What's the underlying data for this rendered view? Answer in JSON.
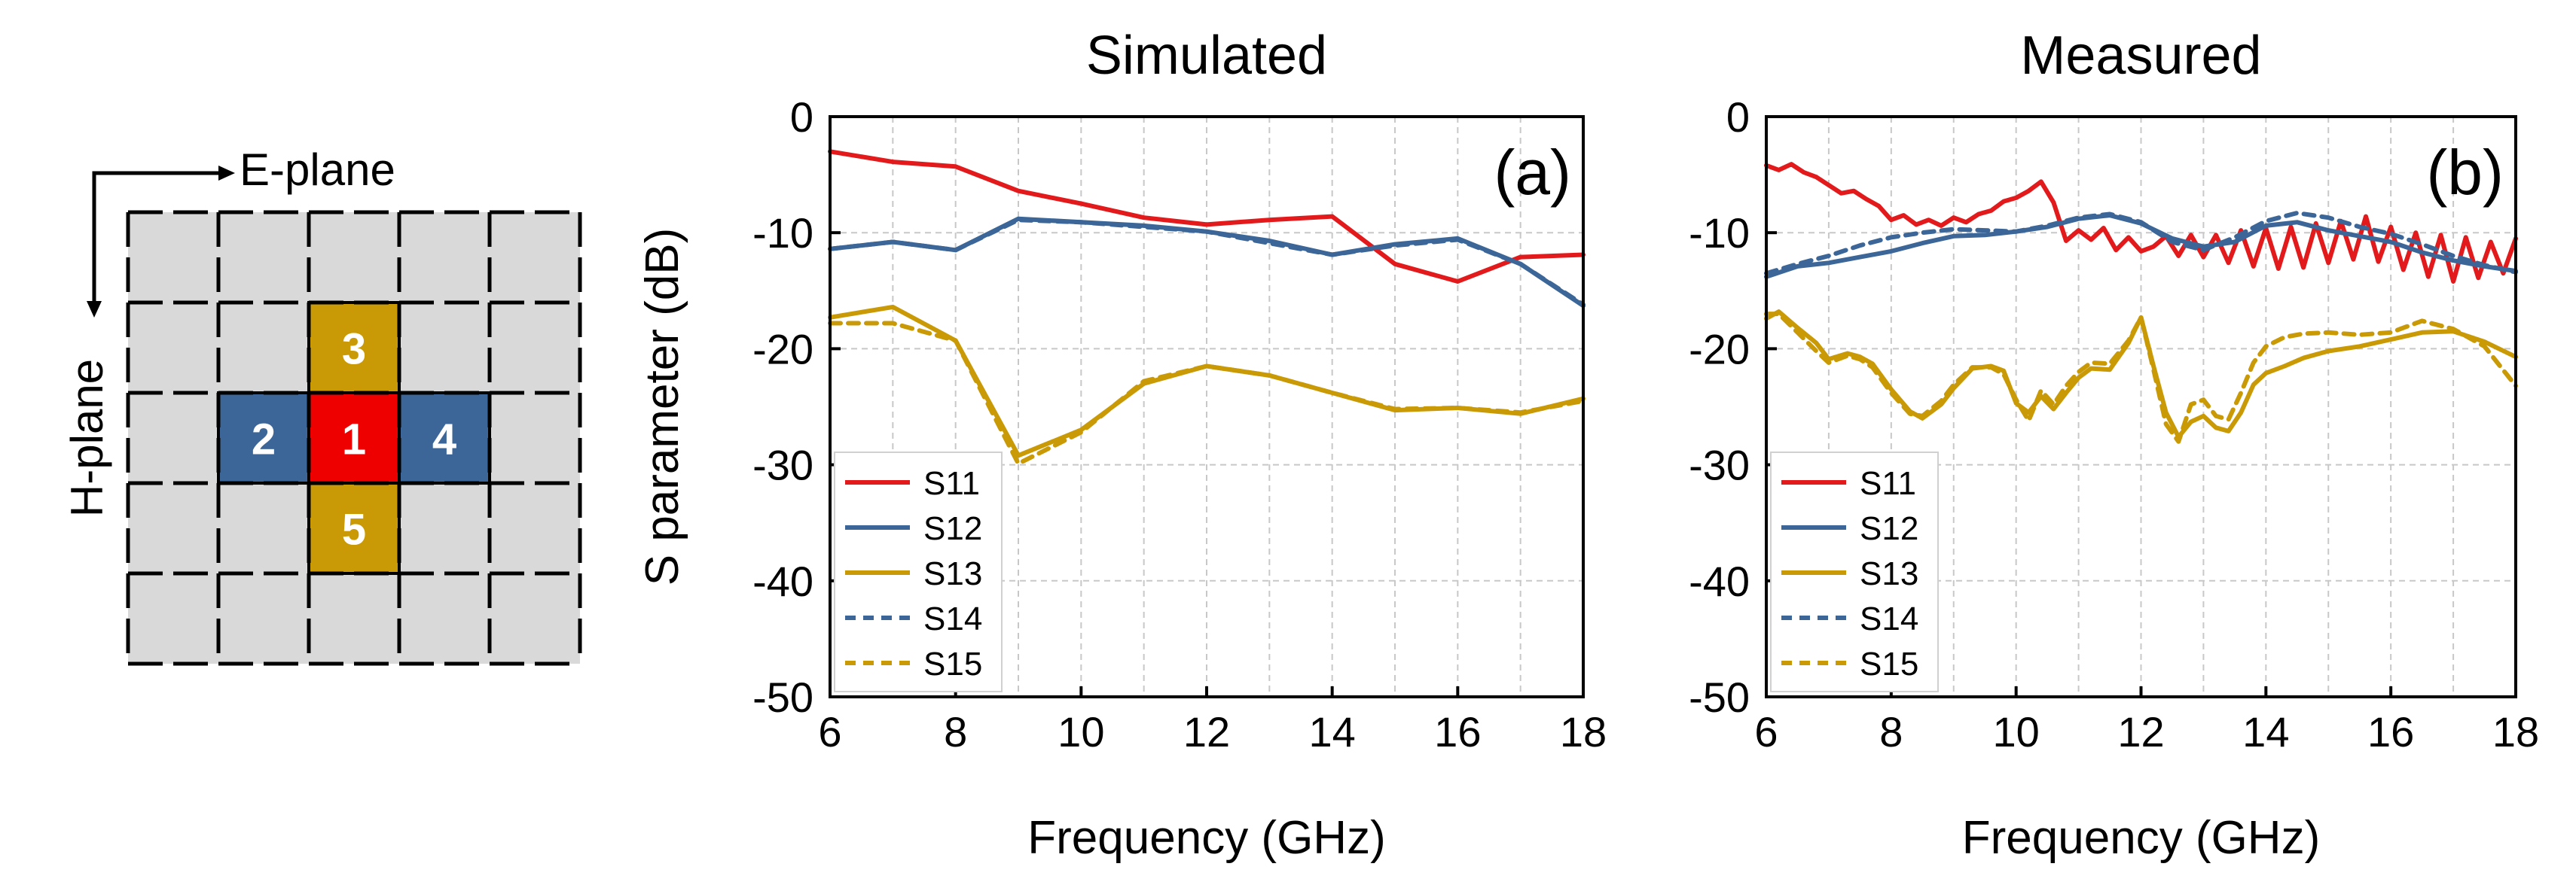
{
  "diagram": {
    "e_plane_label": "E-plane",
    "h_plane_label": "H-plane",
    "cells": [
      {
        "label": "1",
        "color": "#ee0000"
      },
      {
        "label": "2",
        "color": "#3b6697"
      },
      {
        "label": "3",
        "color": "#c99a06"
      },
      {
        "label": "4",
        "color": "#3b6697"
      },
      {
        "label": "5",
        "color": "#c99a06"
      }
    ],
    "grid_fill": "#d9d9d9"
  },
  "chart_data": [
    {
      "type": "line",
      "title": "Simulated",
      "panel_label": "(a)",
      "xlabel": "Frequency (GHz)",
      "ylabel": "S parameter (dB)",
      "xlim": [
        6,
        18
      ],
      "ylim": [
        -50,
        0
      ],
      "xticks": [
        "6",
        "8",
        "10",
        "12",
        "14",
        "16",
        "18"
      ],
      "yticks": [
        "0",
        "-10",
        "-20",
        "-30",
        "-40",
        "-50"
      ],
      "grid": true,
      "legend_position": "bottom-left",
      "series": [
        {
          "name": "S11",
          "color": "#e31a1c",
          "dash": false,
          "x": [
            6,
            7,
            8,
            9,
            10,
            11,
            12,
            13,
            14,
            15,
            16,
            17,
            18
          ],
          "y": [
            -3,
            -3.9,
            -4.3,
            -6.4,
            -7.5,
            -8.7,
            -9.3,
            -8.9,
            -8.6,
            -12.7,
            -14.2,
            -12.1,
            -11.9
          ]
        },
        {
          "name": "S12",
          "color": "#3b6697",
          "dash": false,
          "x": [
            6,
            7,
            8,
            9,
            10,
            11,
            12,
            13,
            14,
            15,
            16,
            17,
            18
          ],
          "y": [
            -11.4,
            -10.8,
            -11.5,
            -8.8,
            -9.1,
            -9.4,
            -9.9,
            -10.7,
            -11.9,
            -11,
            -10.5,
            -12.7,
            -16.3
          ]
        },
        {
          "name": "S13",
          "color": "#c99a06",
          "dash": false,
          "x": [
            6,
            7,
            8,
            9,
            10,
            11,
            12,
            13,
            14,
            15,
            16,
            17,
            18
          ],
          "y": [
            -17.3,
            -16.4,
            -19.3,
            -29.2,
            -27,
            -23,
            -21.5,
            -22.3,
            -23.8,
            -25.3,
            -25.1,
            -25.6,
            -24.3
          ]
        },
        {
          "name": "S14",
          "color": "#3b6697",
          "dash": true,
          "x": [
            6,
            7,
            8,
            9,
            10,
            11,
            12,
            13,
            14,
            15,
            16,
            17,
            18
          ],
          "y": [
            -11.4,
            -10.8,
            -11.5,
            -8.9,
            -9.1,
            -9.5,
            -9.9,
            -10.9,
            -11.9,
            -11.1,
            -10.6,
            -12.7,
            -16.2
          ]
        },
        {
          "name": "S15",
          "color": "#c99a06",
          "dash": true,
          "x": [
            6,
            7,
            8,
            9,
            10,
            11,
            12,
            13,
            14,
            15,
            16,
            17,
            18
          ],
          "y": [
            -17.8,
            -17.8,
            -19.3,
            -29.9,
            -27.2,
            -22.8,
            -21.5,
            -22.3,
            -23.8,
            -25.2,
            -25.1,
            -25.5,
            -24.5
          ]
        }
      ]
    },
    {
      "type": "line",
      "title": "Measured",
      "panel_label": "(b)",
      "xlabel": "Frequency (GHz)",
      "ylabel": "",
      "xlim": [
        6,
        18
      ],
      "ylim": [
        -50,
        0
      ],
      "xticks": [
        "6",
        "8",
        "10",
        "12",
        "14",
        "16",
        "18"
      ],
      "yticks": [
        "0",
        "-10",
        "-20",
        "-30",
        "-40",
        "-50"
      ],
      "grid": true,
      "legend_position": "bottom-left",
      "series": [
        {
          "name": "S11",
          "color": "#e31a1c",
          "dash": false,
          "x": [
            6,
            6.2,
            6.4,
            6.6,
            6.8,
            7,
            7.2,
            7.4,
            7.6,
            7.8,
            8,
            8.2,
            8.4,
            8.6,
            8.8,
            9,
            9.2,
            9.4,
            9.6,
            9.8,
            10,
            10.2,
            10.4,
            10.6,
            10.8,
            11,
            11.2,
            11.4,
            11.6,
            11.8,
            12,
            12.2,
            12.4,
            12.6,
            12.8,
            13,
            13.2,
            13.4,
            13.6,
            13.8,
            14,
            14.2,
            14.4,
            14.6,
            14.8,
            15,
            15.2,
            15.4,
            15.6,
            15.8,
            16,
            16.2,
            16.4,
            16.6,
            16.8,
            17,
            17.2,
            17.4,
            17.6,
            17.8,
            18
          ],
          "y": [
            -4.2,
            -4.6,
            -4.1,
            -4.8,
            -5.2,
            -5.9,
            -6.6,
            -6.4,
            -7.1,
            -7.7,
            -8.9,
            -8.5,
            -9.3,
            -8.9,
            -9.4,
            -8.7,
            -9.1,
            -8.4,
            -8.1,
            -7.3,
            -7.0,
            -6.4,
            -5.6,
            -7.4,
            -10.7,
            -9.8,
            -10.6,
            -9.6,
            -11.5,
            -10.4,
            -11.6,
            -11.2,
            -10.3,
            -12.0,
            -10.2,
            -12.1,
            -10.2,
            -12.6,
            -9.8,
            -12.9,
            -9.6,
            -13.1,
            -9.5,
            -13.0,
            -9.2,
            -12.6,
            -9.0,
            -12.3,
            -8.6,
            -12.5,
            -9.5,
            -13.2,
            -10.0,
            -13.8,
            -10.2,
            -14.2,
            -10.4,
            -13.9,
            -10.8,
            -13.5,
            -10.5
          ]
        },
        {
          "name": "S12",
          "color": "#3b6697",
          "dash": false,
          "x": [
            6,
            6.5,
            7,
            7.5,
            8,
            8.5,
            9,
            9.5,
            10,
            10.5,
            11,
            11.5,
            12,
            12.5,
            13,
            13.5,
            14,
            14.5,
            15,
            15.5,
            16,
            16.5,
            17,
            17.5,
            18
          ],
          "y": [
            -13.8,
            -12.9,
            -12.6,
            -12.1,
            -11.6,
            -10.9,
            -10.3,
            -10.2,
            -9.9,
            -9.5,
            -8.8,
            -8.5,
            -9.2,
            -10.5,
            -11.2,
            -10.8,
            -9.4,
            -9.1,
            -9.8,
            -10.3,
            -10.8,
            -11.7,
            -12.4,
            -12.9,
            -13.3
          ]
        },
        {
          "name": "S13",
          "color": "#c99a06",
          "dash": false,
          "x": [
            6,
            6.2,
            6.5,
            6.8,
            7,
            7.3,
            7.5,
            7.7,
            8,
            8.3,
            8.5,
            8.8,
            9,
            9.3,
            9.6,
            9.8,
            10,
            10.2,
            10.4,
            10.6,
            10.8,
            11,
            11.2,
            11.5,
            11.8,
            12,
            12.2,
            12.4,
            12.6,
            12.8,
            13,
            13.2,
            13.4,
            13.6,
            13.8,
            14,
            14.3,
            14.6,
            15,
            15.5,
            16,
            16.5,
            17,
            17.5,
            18
          ],
          "y": [
            -17.4,
            -16.8,
            -18.2,
            -19.5,
            -20.9,
            -20.4,
            -20.7,
            -21.3,
            -23.5,
            -25.4,
            -26.0,
            -24.8,
            -23.4,
            -21.7,
            -21.5,
            -21.9,
            -24.7,
            -25.5,
            -24.1,
            -25.2,
            -23.8,
            -22.5,
            -21.7,
            -21.8,
            -19.5,
            -17.3,
            -21.5,
            -25.5,
            -27.6,
            -26.3,
            -25.8,
            -26.8,
            -27.1,
            -25.5,
            -23.1,
            -22.1,
            -21.5,
            -20.8,
            -20.2,
            -19.8,
            -19.2,
            -18.6,
            -18.5,
            -19.4,
            -20.7
          ]
        },
        {
          "name": "S14",
          "color": "#3b6697",
          "dash": true,
          "x": [
            6,
            6.5,
            7,
            7.5,
            8,
            8.5,
            9,
            9.5,
            10,
            10.5,
            11,
            11.5,
            12,
            12.5,
            13,
            13.5,
            14,
            14.5,
            15,
            15.5,
            16,
            16.5,
            17,
            17.5,
            18
          ],
          "y": [
            -13.5,
            -12.7,
            -12.0,
            -11.1,
            -10.4,
            -10.0,
            -9.7,
            -9.8,
            -9.9,
            -9.4,
            -8.7,
            -8.4,
            -9.1,
            -10.8,
            -11.5,
            -10.4,
            -9.0,
            -8.3,
            -8.7,
            -9.5,
            -10.1,
            -11.0,
            -12.0,
            -12.8,
            -13.4
          ]
        },
        {
          "name": "S15",
          "color": "#c99a06",
          "dash": true,
          "x": [
            6,
            6.2,
            6.5,
            6.8,
            7,
            7.3,
            7.5,
            7.7,
            8,
            8.3,
            8.5,
            8.8,
            9,
            9.3,
            9.6,
            9.8,
            10,
            10.2,
            10.4,
            10.6,
            10.8,
            11,
            11.2,
            11.5,
            11.8,
            12,
            12.2,
            12.4,
            12.6,
            12.8,
            13,
            13.2,
            13.4,
            13.6,
            13.8,
            14,
            14.3,
            14.6,
            15,
            15.5,
            16,
            16.5,
            17,
            17.5,
            18
          ],
          "y": [
            -17.0,
            -17.0,
            -18.6,
            -20.2,
            -21.2,
            -20.6,
            -20.9,
            -21.6,
            -23.8,
            -25.6,
            -25.8,
            -24.5,
            -23.1,
            -21.6,
            -21.6,
            -22.2,
            -24.4,
            -26.2,
            -23.6,
            -24.8,
            -23.2,
            -22.0,
            -21.2,
            -21.3,
            -19.3,
            -17.3,
            -21.8,
            -26.5,
            -28.0,
            -24.8,
            -24.4,
            -25.8,
            -26.1,
            -23.8,
            -21.2,
            -19.8,
            -19.0,
            -18.7,
            -18.6,
            -18.8,
            -18.6,
            -17.6,
            -18.3,
            -19.8,
            -23.2
          ]
        }
      ]
    }
  ]
}
